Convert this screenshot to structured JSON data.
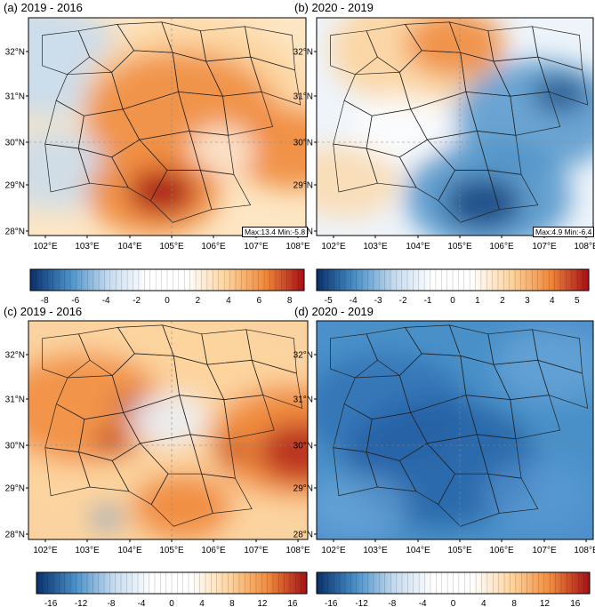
{
  "panels": [
    {
      "id": "a",
      "title": "(a) 2019 - 2016",
      "stats": {
        "max": "Max:13.4",
        "min": "Min:-5.8"
      }
    },
    {
      "id": "b",
      "title": "(b) 2020 - 2019",
      "stats": {
        "max": "Max:4.9",
        "min": "Min:-6.4"
      }
    },
    {
      "id": "c",
      "title": "(c) 2019 - 2016",
      "stats": null
    },
    {
      "id": "d",
      "title": "(d) 2020 - 2019",
      "stats": null
    }
  ],
  "axes": {
    "lat_ticks": [
      "32°N",
      "31°N",
      "30°N",
      "29°N",
      "28°N"
    ],
    "lon_ticks": [
      "102°E",
      "103°E",
      "104°E",
      "105°E",
      "106°E",
      "107°E",
      "108°E"
    ]
  },
  "colorbars": [
    {
      "id": "cb-a",
      "labels": [
        "-8",
        "-6",
        "-4",
        "-2",
        "0",
        "2",
        "4",
        "6",
        "8"
      ],
      "range": [
        -8,
        8
      ]
    },
    {
      "id": "cb-b",
      "labels": [
        "-5",
        "-4",
        "-3",
        "-2",
        "-1",
        "0",
        "1",
        "2",
        "3",
        "4",
        "5"
      ],
      "range": [
        -5,
        5
      ]
    },
    {
      "id": "cb-c",
      "labels": [
        "-16",
        "-12",
        "-8",
        "-4",
        "0",
        "4",
        "8",
        "12",
        "16"
      ],
      "range": [
        -16,
        16
      ]
    },
    {
      "id": "cb-d",
      "labels": [
        "-16",
        "-12",
        "-8",
        "-4",
        "0",
        "4",
        "8",
        "12",
        "16"
      ],
      "range": [
        -16,
        16
      ]
    }
  ],
  "colors": {
    "deep_blue": "#08306b",
    "mid_blue": "#4a90c8",
    "light_blue": "#c6dbef",
    "white": "#ffffff",
    "light_orange": "#fdd49e",
    "orange": "#f08a3c",
    "deep_red": "#a50f15"
  }
}
